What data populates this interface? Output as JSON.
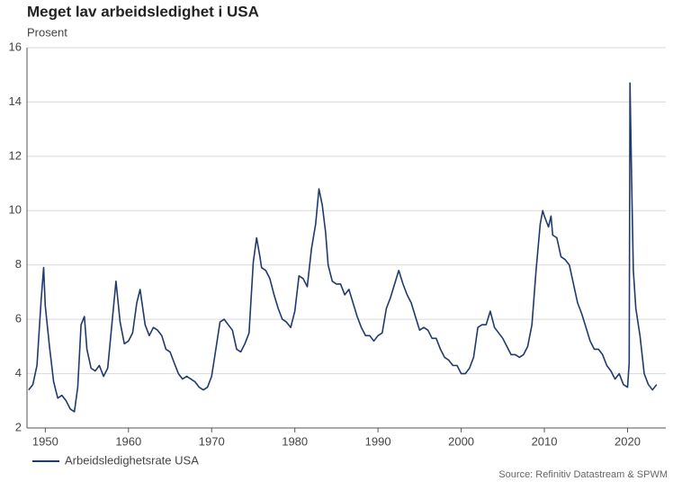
{
  "chart_data": {
    "type": "line",
    "title": "Meget lav arbeidsledighet i USA",
    "subtitle": "Prosent",
    "source": "Source: Refinitiv Datastream & SPWM",
    "xlim": [
      1947.8,
      2024.6
    ],
    "ylim": [
      2,
      16
    ],
    "xticks": [
      1950,
      1960,
      1970,
      1980,
      1990,
      2000,
      2010,
      2020
    ],
    "yticks": [
      2,
      4,
      6,
      8,
      10,
      12,
      14,
      16
    ],
    "grid": true,
    "series": [
      {
        "name": "Arbeidsledighetsrate USA",
        "color": "#1f3a6e",
        "x": [
          1948.0,
          1948.5,
          1949.0,
          1949.5,
          1949.8,
          1950.0,
          1950.5,
          1951.0,
          1951.5,
          1952.0,
          1952.5,
          1953.0,
          1953.5,
          1953.9,
          1954.3,
          1954.7,
          1955.0,
          1955.5,
          1956.0,
          1956.5,
          1957.0,
          1957.5,
          1958.0,
          1958.5,
          1959.0,
          1959.5,
          1960.0,
          1960.5,
          1961.0,
          1961.4,
          1962.0,
          1962.5,
          1963.0,
          1963.5,
          1964.0,
          1964.5,
          1965.0,
          1965.5,
          1966.0,
          1966.5,
          1967.0,
          1967.5,
          1968.0,
          1968.5,
          1969.0,
          1969.5,
          1970.0,
          1970.5,
          1971.0,
          1971.5,
          1972.0,
          1972.5,
          1973.0,
          1973.5,
          1974.0,
          1974.5,
          1975.0,
          1975.4,
          1975.8,
          1976.0,
          1976.5,
          1977.0,
          1977.5,
          1978.0,
          1978.5,
          1979.0,
          1979.5,
          1980.0,
          1980.5,
          1981.0,
          1981.5,
          1982.0,
          1982.5,
          1982.9,
          1983.3,
          1983.7,
          1984.0,
          1984.5,
          1985.0,
          1985.5,
          1986.0,
          1986.5,
          1987.0,
          1987.5,
          1988.0,
          1988.5,
          1989.0,
          1989.5,
          1990.0,
          1990.5,
          1991.0,
          1991.5,
          1992.0,
          1992.5,
          1993.0,
          1993.5,
          1994.0,
          1994.5,
          1995.0,
          1995.5,
          1996.0,
          1996.5,
          1997.0,
          1997.5,
          1998.0,
          1998.5,
          1999.0,
          1999.5,
          2000.0,
          2000.5,
          2001.0,
          2001.5,
          2002.0,
          2002.5,
          2003.0,
          2003.5,
          2004.0,
          2004.5,
          2005.0,
          2005.5,
          2006.0,
          2006.5,
          2007.0,
          2007.5,
          2008.0,
          2008.5,
          2009.0,
          2009.5,
          2009.8,
          2010.0,
          2010.5,
          2010.8,
          2011.0,
          2011.5,
          2012.0,
          2012.5,
          2013.0,
          2013.5,
          2014.0,
          2014.5,
          2015.0,
          2015.5,
          2016.0,
          2016.5,
          2017.0,
          2017.5,
          2018.0,
          2018.5,
          2019.0,
          2019.5,
          2020.0,
          2020.2,
          2020.3,
          2020.5,
          2020.7,
          2021.0,
          2021.5,
          2022.0,
          2022.5,
          2023.0,
          2023.5
        ],
        "values": [
          3.4,
          3.6,
          4.3,
          6.7,
          7.9,
          6.5,
          5.0,
          3.7,
          3.1,
          3.2,
          3.0,
          2.7,
          2.6,
          3.5,
          5.8,
          6.1,
          4.9,
          4.2,
          4.1,
          4.3,
          3.9,
          4.2,
          5.8,
          7.4,
          5.9,
          5.1,
          5.2,
          5.5,
          6.6,
          7.1,
          5.8,
          5.4,
          5.7,
          5.6,
          5.4,
          4.9,
          4.8,
          4.4,
          4.0,
          3.8,
          3.9,
          3.8,
          3.7,
          3.5,
          3.4,
          3.5,
          3.9,
          4.9,
          5.9,
          6.0,
          5.8,
          5.6,
          4.9,
          4.8,
          5.1,
          5.5,
          8.1,
          9.0,
          8.3,
          7.9,
          7.8,
          7.5,
          6.9,
          6.4,
          6.0,
          5.9,
          5.7,
          6.3,
          7.6,
          7.5,
          7.2,
          8.6,
          9.5,
          10.8,
          10.2,
          9.2,
          8.0,
          7.4,
          7.3,
          7.3,
          6.9,
          7.1,
          6.6,
          6.1,
          5.7,
          5.4,
          5.4,
          5.2,
          5.4,
          5.5,
          6.4,
          6.8,
          7.3,
          7.8,
          7.3,
          6.9,
          6.6,
          6.1,
          5.6,
          5.7,
          5.6,
          5.3,
          5.3,
          4.9,
          4.6,
          4.5,
          4.3,
          4.3,
          4.0,
          4.0,
          4.2,
          4.6,
          5.7,
          5.8,
          5.8,
          6.3,
          5.7,
          5.5,
          5.3,
          5.0,
          4.7,
          4.7,
          4.6,
          4.7,
          5.0,
          5.8,
          7.8,
          9.5,
          10.0,
          9.8,
          9.4,
          9.8,
          9.1,
          9.0,
          8.3,
          8.2,
          8.0,
          7.3,
          6.6,
          6.2,
          5.7,
          5.2,
          4.9,
          4.9,
          4.7,
          4.3,
          4.1,
          3.8,
          4.0,
          3.6,
          3.5,
          4.4,
          14.7,
          11.0,
          7.8,
          6.4,
          5.4,
          4.0,
          3.6,
          3.4,
          3.6
        ]
      }
    ]
  }
}
